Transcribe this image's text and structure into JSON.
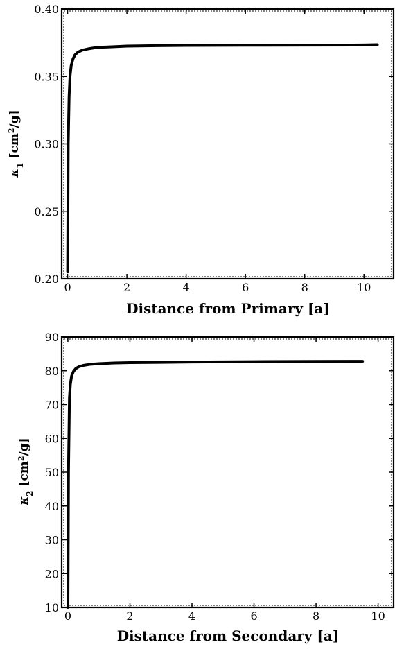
{
  "chart_data": [
    {
      "type": "line",
      "xlabel": "Distance from Primary [a]",
      "ylabel": {
        "symbol": "κ",
        "sub": "1",
        "unit_pre": "[cm",
        "unit_sup": "2",
        "unit_post": "/g]"
      },
      "xlim": [
        -0.2,
        11.0
      ],
      "ylim": [
        0.2,
        0.4
      ],
      "x_ticks": [
        0,
        2,
        4,
        6,
        8,
        10
      ],
      "y_ticks": [
        0.2,
        0.25,
        0.3,
        0.35,
        0.4
      ],
      "y_tick_labels": [
        "0.20",
        "0.25",
        "0.30",
        "0.35",
        "0.40"
      ],
      "grid": false,
      "series": [
        {
          "color": "#000000",
          "x": [
            0.0,
            0.02,
            0.05,
            0.08,
            0.12,
            0.18,
            0.25,
            0.35,
            0.5,
            0.7,
            1.0,
            1.5,
            2.0,
            3.0,
            4.0,
            6.0,
            8.0,
            10.0,
            10.45
          ],
          "y": [
            0.205,
            0.3,
            0.335,
            0.35,
            0.358,
            0.363,
            0.366,
            0.368,
            0.3695,
            0.3705,
            0.3715,
            0.372,
            0.3725,
            0.3728,
            0.373,
            0.3731,
            0.3732,
            0.3733,
            0.3735
          ]
        }
      ]
    },
    {
      "type": "line",
      "xlabel": "Distance from Secondary [a]",
      "ylabel": {
        "symbol": "κ",
        "sub": "2",
        "unit_pre": "[cm",
        "unit_sup": "2",
        "unit_post": "/g]"
      },
      "xlim": [
        -0.2,
        10.5
      ],
      "ylim": [
        10,
        90
      ],
      "x_ticks": [
        0,
        2,
        4,
        6,
        8,
        10
      ],
      "y_ticks": [
        10,
        20,
        30,
        40,
        50,
        60,
        70,
        80,
        90
      ],
      "y_tick_labels": [
        "10",
        "20",
        "30",
        "40",
        "50",
        "60",
        "70",
        "80",
        "90"
      ],
      "grid": false,
      "series": [
        {
          "color": "#000000",
          "x": [
            0.0,
            0.02,
            0.05,
            0.08,
            0.12,
            0.18,
            0.25,
            0.35,
            0.5,
            0.7,
            1.0,
            1.5,
            2.0,
            3.0,
            4.0,
            6.0,
            8.0,
            9.5
          ],
          "y": [
            10,
            50,
            72,
            76,
            78.5,
            79.8,
            80.6,
            81.2,
            81.6,
            81.9,
            82.1,
            82.3,
            82.4,
            82.5,
            82.6,
            82.7,
            82.75,
            82.8
          ]
        }
      ]
    }
  ]
}
